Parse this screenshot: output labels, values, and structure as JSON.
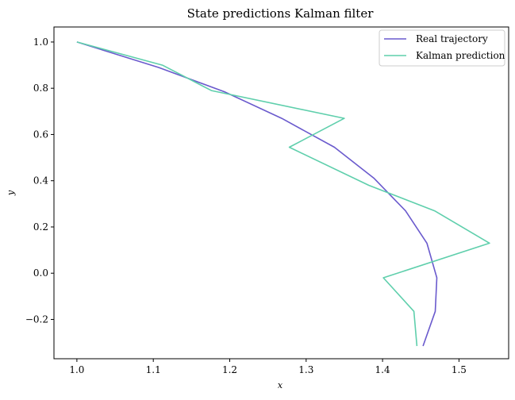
{
  "chart_data": {
    "type": "line",
    "title": "State predictions Kalman filter",
    "xlabel": "x",
    "ylabel": "y",
    "xlim": [
      0.97,
      1.565
    ],
    "ylim": [
      -0.37,
      1.065
    ],
    "x_ticks": [
      1.0,
      1.1,
      1.2,
      1.3,
      1.4,
      1.5
    ],
    "x_tick_labels": [
      "1.0",
      "1.1",
      "1.2",
      "1.3",
      "1.4",
      "1.5"
    ],
    "y_ticks": [
      1.0,
      0.8,
      0.6,
      0.4,
      0.2,
      0.0,
      -0.2
    ],
    "y_tick_labels": [
      "1.0",
      "0.8",
      "0.6",
      "0.4",
      "0.2",
      "0.0",
      "−0.2"
    ],
    "grid": false,
    "legend_position": "top-right",
    "series": [
      {
        "name": "Real trajectory",
        "color": "#6a5acd",
        "x": [
          1.0,
          1.107,
          1.193,
          1.268,
          1.337,
          1.389,
          1.43,
          1.458,
          1.471,
          1.469,
          1.453
        ],
        "y": [
          1.0,
          0.89,
          0.785,
          0.67,
          0.545,
          0.41,
          0.27,
          0.13,
          -0.02,
          -0.165,
          -0.315
        ]
      },
      {
        "name": "Kalman prediction",
        "color": "#5fcfac",
        "x": [
          1.0,
          1.112,
          1.176,
          1.35,
          1.278,
          1.382,
          1.468,
          1.54,
          1.401,
          1.441,
          1.445
        ],
        "y": [
          1.0,
          0.9,
          0.79,
          0.67,
          0.545,
          0.38,
          0.27,
          0.13,
          -0.02,
          -0.165,
          -0.315
        ]
      }
    ]
  }
}
